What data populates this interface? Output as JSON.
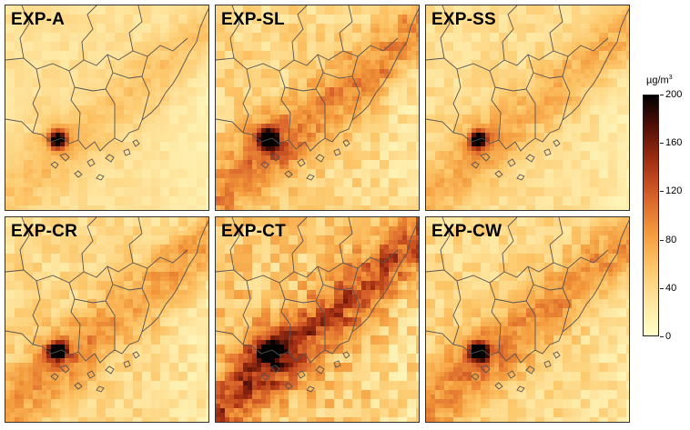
{
  "panels": [
    {
      "id": "exp-a",
      "label": "EXP-A",
      "intensity": 0.25,
      "hotspot": 0.9
    },
    {
      "id": "exp-sl",
      "label": "EXP-SL",
      "intensity": 0.55,
      "hotspot": 1.0
    },
    {
      "id": "exp-ss",
      "label": "EXP-SS",
      "intensity": 0.35,
      "hotspot": 0.85
    },
    {
      "id": "exp-cr",
      "label": "EXP-CR",
      "intensity": 0.45,
      "hotspot": 1.0
    },
    {
      "id": "exp-ct",
      "label": "EXP-CT",
      "intensity": 0.8,
      "hotspot": 1.0
    },
    {
      "id": "exp-cw",
      "label": "EXP-CW",
      "intensity": 0.5,
      "hotspot": 1.0
    }
  ],
  "colorbar": {
    "unit": "µg/m",
    "unit_sup": "3",
    "min": 0,
    "max": 200,
    "ticks": [
      "0",
      "40",
      "80",
      "120",
      "160",
      "200"
    ],
    "colors": [
      "#ffffc8",
      "#fee6a0",
      "#fdc668",
      "#f39a3c",
      "#d9642a",
      "#a83214",
      "#5a1208",
      "#000000"
    ]
  }
}
